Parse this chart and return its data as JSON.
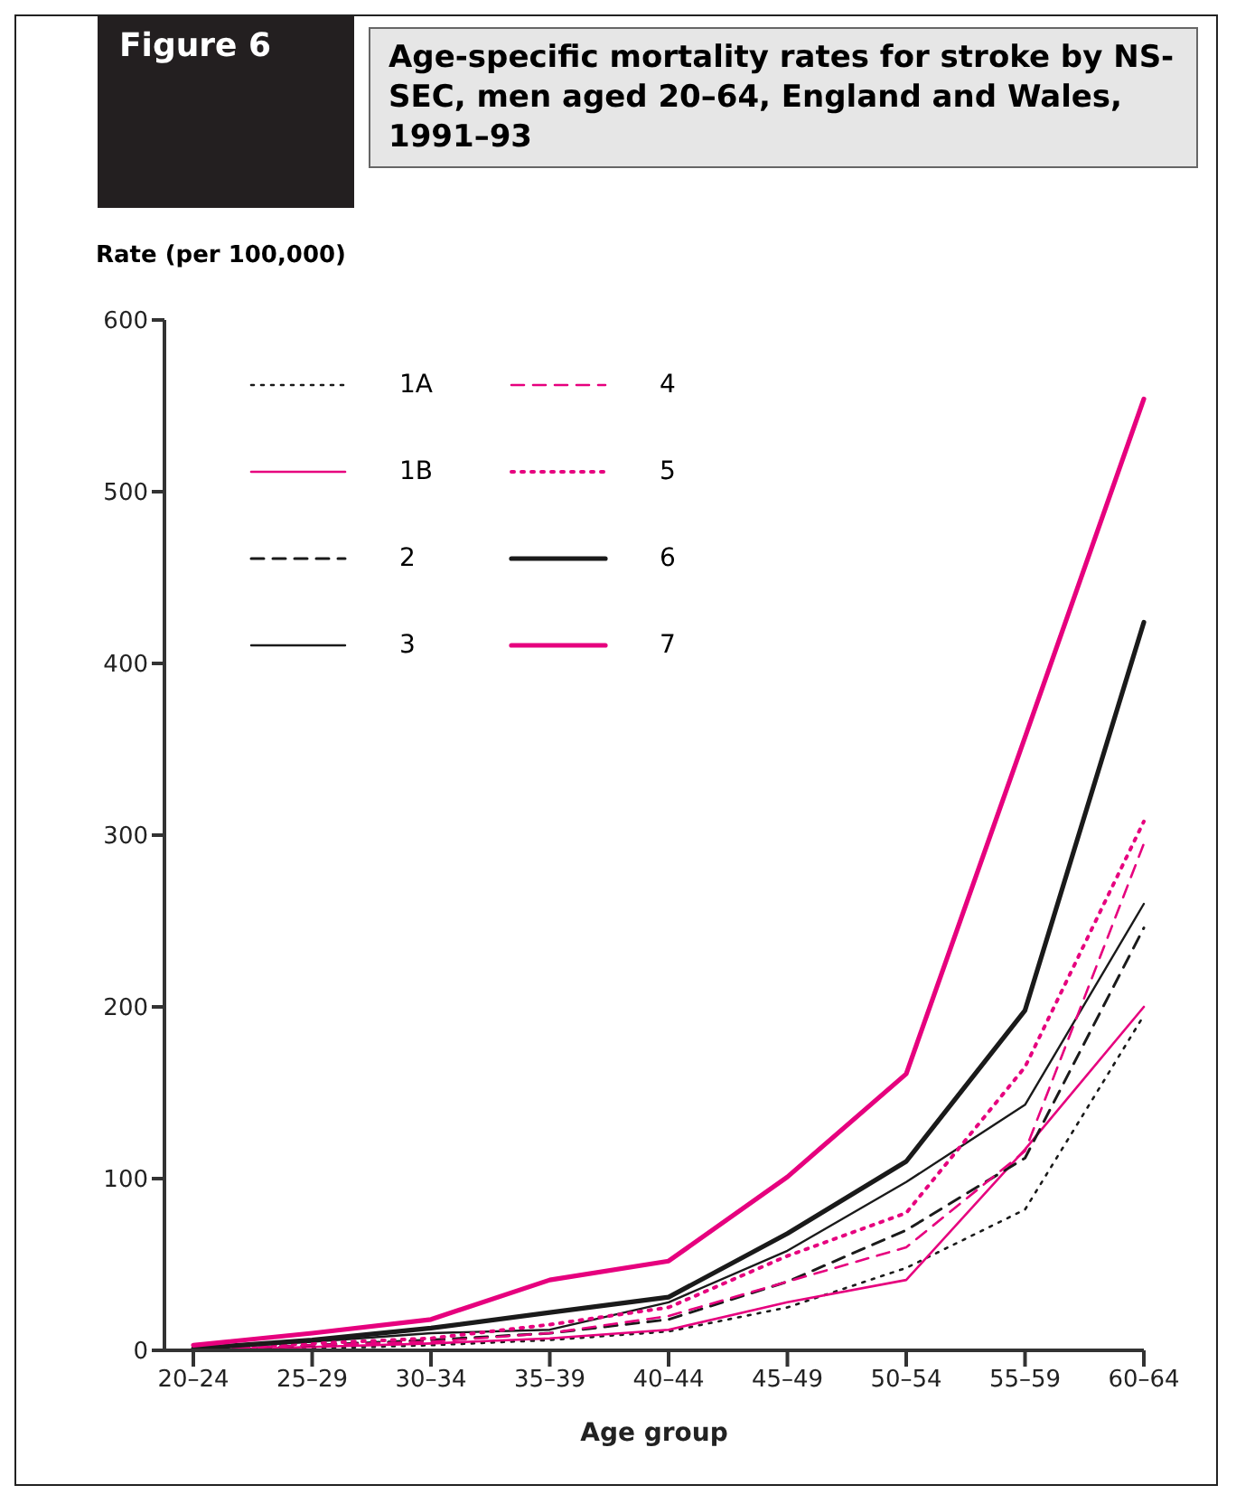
{
  "chart_data": {
    "type": "line",
    "title": "Age-specific mortality rates for stroke by NS-SEC, men aged 20–64, England and Wales, 1991–93",
    "annotations": [
      "Figure 6"
    ],
    "xlabel": "Age group",
    "ylabel": "Rate (per 100,000)",
    "categories": [
      "20–24",
      "25–29",
      "30–34",
      "35–39",
      "40–44",
      "45–49",
      "50–54",
      "55–59",
      "60–64"
    ],
    "ylim": [
      0,
      600
    ],
    "yticks": [
      0,
      100,
      200,
      300,
      400,
      500,
      600
    ],
    "grid": false,
    "legend": "top left",
    "marker": "none",
    "series": [
      {
        "name": "1A",
        "color": "#1a1a1a",
        "line_style": "dotted",
        "values": [
          0,
          1,
          3,
          6,
          11,
          25,
          48,
          82,
          195
        ]
      },
      {
        "name": "1B",
        "color": "#e6007e",
        "line_style": "solid",
        "values": [
          0,
          2,
          4,
          7,
          12,
          28,
          41,
          117,
          200
        ]
      },
      {
        "name": "2",
        "color": "#1a1a1a",
        "line_style": "dashed",
        "values": [
          0,
          3,
          6,
          10,
          18,
          40,
          70,
          112,
          246
        ]
      },
      {
        "name": "3",
        "color": "#1a1a1a",
        "line_style": "solid",
        "values": [
          1,
          5,
          10,
          12,
          28,
          58,
          98,
          143,
          260
        ]
      },
      {
        "name": "4",
        "color": "#e6007e",
        "line_style": "dashed",
        "values": [
          0,
          3,
          5,
          10,
          20,
          40,
          60,
          116,
          295
        ]
      },
      {
        "name": "5",
        "color": "#e6007e",
        "line_style": "dotted",
        "values": [
          1,
          4,
          7,
          15,
          25,
          55,
          80,
          165,
          308
        ]
      },
      {
        "name": "6",
        "color": "#1a1a1a",
        "line_style": "solid",
        "values": [
          1,
          6,
          13,
          22,
          31,
          68,
          110,
          198,
          424
        ]
      },
      {
        "name": "7",
        "color": "#e6007e",
        "line_style": "solid",
        "values": [
          3,
          10,
          18,
          41,
          52,
          101,
          161,
          357,
          554
        ]
      }
    ]
  }
}
